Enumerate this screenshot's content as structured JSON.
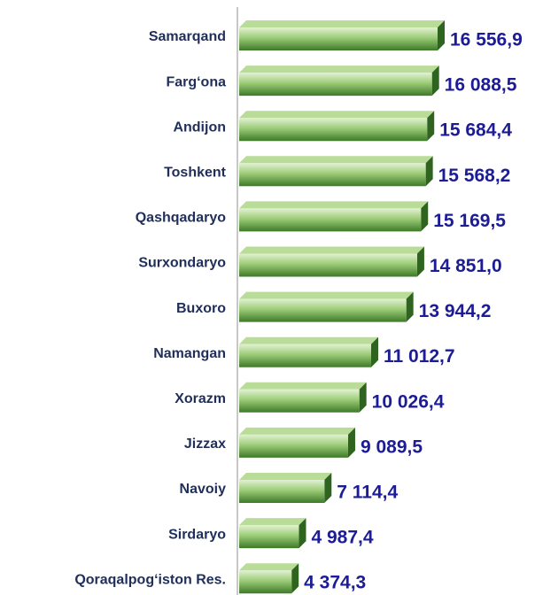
{
  "chart_data": {
    "type": "barh",
    "categories": [
      "Samarqand",
      "Farg‘ona",
      "Andijon",
      "Toshkent",
      "Qashqadaryo",
      "Surxondaryo",
      "Buxoro",
      "Namangan",
      "Xorazm",
      "Jizzax",
      "Navoiy",
      "Sirdaryo",
      "Qoraqalpog‘iston Res."
    ],
    "values": [
      16556.9,
      16088.5,
      15684.4,
      15568.2,
      15169.5,
      14851.0,
      13944.2,
      11012.7,
      10026.4,
      9089.5,
      7114.4,
      4987.4,
      4374.3
    ],
    "value_labels": [
      "16 556,9",
      "16 088,5",
      "15 684,4",
      "15 568,2",
      "15 169,5",
      "14 851,0",
      "13 944,2",
      "11 012,7",
      "10 026,4",
      "9 089,5",
      "7 114,4",
      "4 987,4",
      "4 374,3"
    ],
    "color": "#5a9a3c"
  }
}
